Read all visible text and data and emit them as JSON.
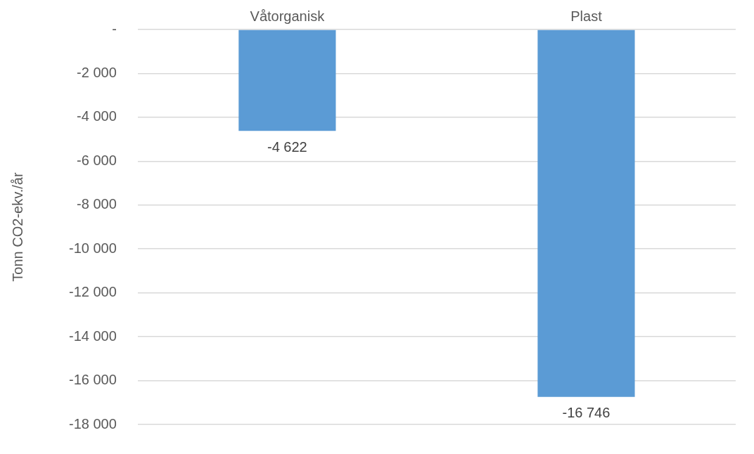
{
  "chart_data": {
    "type": "bar",
    "ylabel": "Tonn CO2-ekv./år",
    "categories": [
      "Våtorganisk",
      "Plast"
    ],
    "values": [
      -4622,
      -16746
    ],
    "value_labels": [
      "-4 622",
      "-16 746"
    ],
    "color": "#5b9bd5",
    "ylim": [
      -18000,
      0
    ],
    "yticks": [
      {
        "value": 0,
        "label": "-"
      },
      {
        "value": -2000,
        "label": "-2 000"
      },
      {
        "value": -4000,
        "label": "-4 000"
      },
      {
        "value": -6000,
        "label": "-6 000"
      },
      {
        "value": -8000,
        "label": "-8 000"
      },
      {
        "value": -10000,
        "label": "-10 000"
      },
      {
        "value": -12000,
        "label": "-12 000"
      },
      {
        "value": -14000,
        "label": "-14 000"
      },
      {
        "value": -16000,
        "label": "-16 000"
      },
      {
        "value": -18000,
        "label": "-18 000"
      }
    ],
    "grid": "y",
    "legend": false
  }
}
